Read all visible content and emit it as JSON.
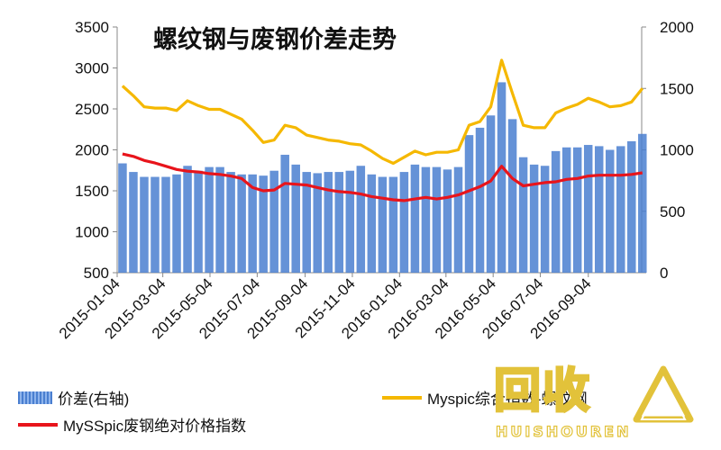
{
  "chart_data": {
    "type": "bar+line",
    "title": "螺纹钢与废钢价差走势",
    "x_tick_labels": [
      "2015-01-04",
      "2015-03-04",
      "2015-05-04",
      "2015-07-04",
      "2015-09-04",
      "2015-11-04",
      "2016-01-04",
      "2016-03-04",
      "2016-05-04",
      "2016-07-04",
      "2016-09-04"
    ],
    "y_left": {
      "min": 500,
      "max": 3500,
      "ticks": [
        500,
        1000,
        1500,
        2000,
        2500,
        3000,
        3500
      ]
    },
    "y_right": {
      "min": 0,
      "max": 2000,
      "ticks": [
        0,
        500,
        1000,
        1500,
        2000
      ]
    },
    "grid": false,
    "legend_placement": "bottom",
    "dates": [
      "2015-01-04",
      "2015-01-18",
      "2015-02-01",
      "2015-02-15",
      "2015-03-01",
      "2015-03-15",
      "2015-03-29",
      "2015-04-12",
      "2015-04-26",
      "2015-05-10",
      "2015-05-24",
      "2015-06-07",
      "2015-06-21",
      "2015-07-05",
      "2015-07-19",
      "2015-08-02",
      "2015-08-16",
      "2015-08-30",
      "2015-09-13",
      "2015-09-27",
      "2015-10-11",
      "2015-10-25",
      "2015-11-08",
      "2015-11-22",
      "2015-12-06",
      "2015-12-20",
      "2016-01-03",
      "2016-01-17",
      "2016-01-31",
      "2016-02-14",
      "2016-02-28",
      "2016-03-13",
      "2016-03-27",
      "2016-04-10",
      "2016-04-24",
      "2016-05-08",
      "2016-05-22",
      "2016-06-05",
      "2016-06-19",
      "2016-07-03",
      "2016-07-17",
      "2016-07-31",
      "2016-08-14",
      "2016-08-28",
      "2016-09-11",
      "2016-09-25",
      "2016-10-09",
      "2016-10-23",
      "2016-11-06"
    ],
    "series": [
      {
        "name": "价差(右轴)",
        "type": "bar",
        "axis": "right",
        "color": "#4a7fd0",
        "values": [
          890,
          820,
          780,
          780,
          780,
          800,
          870,
          830,
          860,
          860,
          820,
          800,
          800,
          790,
          830,
          960,
          880,
          820,
          810,
          820,
          820,
          830,
          870,
          800,
          780,
          780,
          820,
          880,
          860,
          860,
          840,
          860,
          1120,
          1180,
          1280,
          1550,
          1250,
          940,
          880,
          870,
          990,
          1020,
          1020,
          1040,
          1030,
          1000,
          1030,
          1070,
          1130
        ]
      },
      {
        "name": "Myspic综合指数-螺纹钢",
        "type": "line",
        "axis": "right",
        "color": "#f5b800",
        "values": [
          1520,
          1440,
          1350,
          1340,
          1340,
          1320,
          1400,
          1360,
          1330,
          1330,
          1290,
          1250,
          1160,
          1060,
          1080,
          1200,
          1180,
          1120,
          1100,
          1080,
          1070,
          1050,
          1040,
          990,
          930,
          890,
          940,
          990,
          960,
          980,
          980,
          1000,
          1200,
          1230,
          1350,
          1730,
          1460,
          1200,
          1180,
          1180,
          1300,
          1340,
          1370,
          1420,
          1390,
          1350,
          1360,
          1390,
          1500
        ]
      },
      {
        "name": "MySSpic废钢绝对价格指数",
        "type": "line",
        "axis": "left",
        "color": "#e8141b",
        "values": [
          1950,
          1920,
          1870,
          1840,
          1800,
          1760,
          1740,
          1730,
          1710,
          1700,
          1680,
          1650,
          1540,
          1500,
          1510,
          1590,
          1580,
          1570,
          1540,
          1510,
          1490,
          1480,
          1460,
          1430,
          1410,
          1390,
          1380,
          1400,
          1420,
          1400,
          1420,
          1450,
          1500,
          1550,
          1620,
          1800,
          1650,
          1560,
          1580,
          1600,
          1610,
          1640,
          1650,
          1680,
          1690,
          1690,
          1690,
          1700,
          1720
        ]
      }
    ]
  },
  "legend": {
    "bar_label": "价差(右轴)",
    "yellow_label": "Myspic综合指数-螺纹钢",
    "red_label": "MySSpic废钢绝对价格指数"
  },
  "watermark": {
    "main": "回收",
    "sub": "HUISHOUREN"
  }
}
